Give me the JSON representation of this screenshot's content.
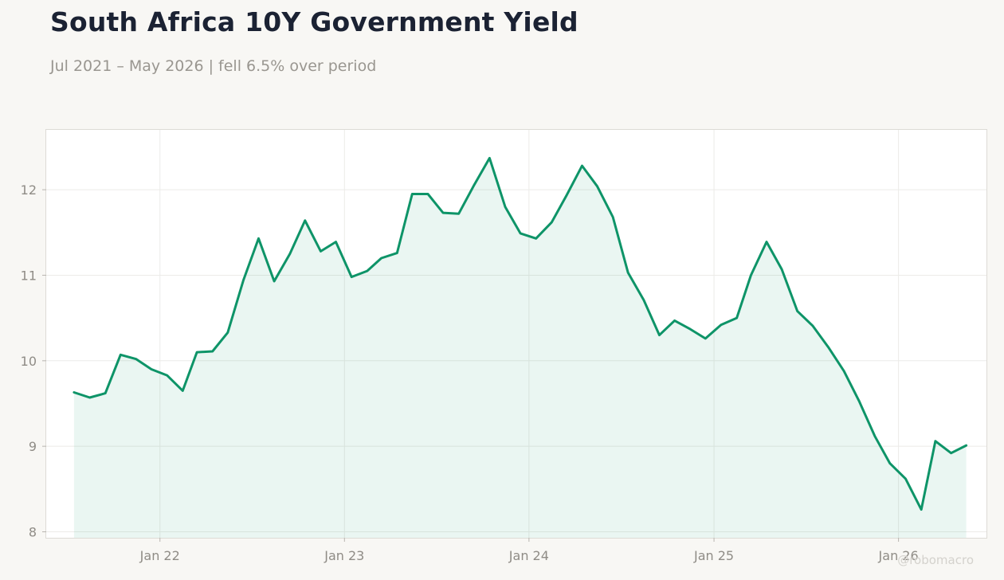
{
  "header": {
    "title": "South Africa 10Y Government Yield",
    "subtitle": "Jul 2021 – May 2026 | fell 6.5% over period"
  },
  "watermark": "@robomacro",
  "colors": {
    "line": "#0e9468",
    "fill": "#0e9468",
    "background": "#f8f7f4",
    "plot_background": "#ffffff",
    "grid": "#ecebe8"
  },
  "chart_data": {
    "type": "area",
    "title": "South Africa 10Y Government Yield",
    "subtitle": "Jul 2021 – May 2026 | fell 6.5% over period",
    "xlabel": "",
    "ylabel": "",
    "ylim": [
      7.93,
      12.7
    ],
    "xlim": [
      "2021-05-21",
      "2026-06-24"
    ],
    "grid": true,
    "legend": "none",
    "x_ticks": [
      {
        "date": "2022-01-01",
        "label": "Jan 22"
      },
      {
        "date": "2023-01-01",
        "label": "Jan 23"
      },
      {
        "date": "2024-01-01",
        "label": "Jan 24"
      },
      {
        "date": "2025-01-01",
        "label": "Jan 25"
      },
      {
        "date": "2026-01-01",
        "label": "Jan 26"
      }
    ],
    "y_ticks": [
      8,
      9,
      10,
      11,
      12
    ],
    "series": [
      {
        "x": [
          "2021-07",
          "2021-08",
          "2021-09",
          "2021-10",
          "2021-11",
          "2021-12",
          "2022-01",
          "2022-02",
          "2022-03",
          "2022-04",
          "2022-05",
          "2022-06",
          "2022-07",
          "2022-08",
          "2022-09",
          "2022-10",
          "2022-11",
          "2022-12",
          "2023-01",
          "2023-02",
          "2023-03",
          "2023-04",
          "2023-05",
          "2023-06",
          "2023-07",
          "2023-08",
          "2023-09",
          "2023-10",
          "2023-11",
          "2023-12",
          "2024-01",
          "2024-02",
          "2024-03",
          "2024-04",
          "2024-05",
          "2024-06",
          "2024-07",
          "2024-08",
          "2024-09",
          "2024-10",
          "2024-11",
          "2024-12",
          "2025-01",
          "2025-02",
          "2025-03",
          "2025-04",
          "2025-05",
          "2025-06",
          "2025-07",
          "2025-08",
          "2025-09",
          "2025-10",
          "2025-11",
          "2025-12",
          "2026-01",
          "2026-02",
          "2026-03",
          "2026-04",
          "2026-05"
        ],
        "values": [
          9.63,
          9.57,
          9.62,
          10.07,
          10.02,
          9.9,
          9.83,
          9.65,
          10.1,
          10.11,
          10.33,
          10.94,
          11.43,
          10.93,
          11.25,
          11.64,
          11.28,
          11.39,
          10.98,
          11.05,
          11.2,
          11.26,
          11.95,
          11.95,
          11.73,
          11.72,
          12.06,
          12.37,
          11.8,
          11.49,
          11.43,
          11.62,
          11.93,
          12.28,
          12.04,
          11.68,
          11.03,
          10.71,
          10.3,
          10.47,
          10.37,
          10.26,
          10.42,
          10.5,
          11.0,
          11.39,
          11.07,
          10.58,
          10.41,
          10.16,
          9.88,
          9.53,
          9.12,
          8.8,
          8.62,
          8.26,
          9.06,
          8.92,
          9.01
        ]
      }
    ]
  }
}
